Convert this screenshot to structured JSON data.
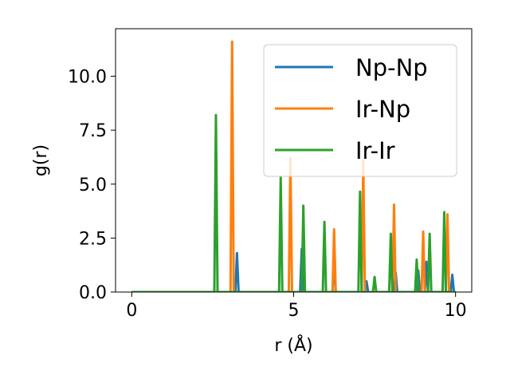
{
  "chart_data": {
    "type": "line",
    "title": "",
    "xlabel": "r (Å)",
    "ylabel": "g(r)",
    "xlim": [
      -0.5,
      10.5
    ],
    "ylim": [
      0.0,
      12.2
    ],
    "xticks": [
      0,
      5,
      10
    ],
    "xtick_labels": [
      "0",
      "5",
      "10"
    ],
    "yticks": [
      0.0,
      2.5,
      5.0,
      7.5,
      10.0
    ],
    "ytick_labels": [
      "0.0",
      "2.5",
      "5.0",
      "7.5",
      "10.0"
    ],
    "grid": false,
    "legend_position": "top-right",
    "r_step": 0.05,
    "r_max": 10.0,
    "series": [
      {
        "name": "Np-Np",
        "color": "#1f77b4",
        "peaks": [
          [
            3.25,
            1.8
          ],
          [
            5.25,
            2.0
          ],
          [
            6.25,
            1.5
          ],
          [
            7.25,
            0.5
          ],
          [
            8.15,
            0.9
          ],
          [
            8.85,
            1.0
          ],
          [
            9.1,
            1.4
          ],
          [
            9.9,
            0.8
          ]
        ]
      },
      {
        "name": "Ir-Np",
        "color": "#ff7f0e",
        "peaks": [
          [
            3.1,
            11.6
          ],
          [
            4.9,
            6.2
          ],
          [
            6.25,
            2.9
          ],
          [
            7.15,
            6.1
          ],
          [
            8.1,
            4.05
          ],
          [
            9.0,
            2.8
          ],
          [
            9.75,
            3.6
          ]
        ]
      },
      {
        "name": "Ir-Ir",
        "color": "#2ca02c",
        "peaks": [
          [
            2.6,
            8.2
          ],
          [
            4.6,
            5.3
          ],
          [
            5.3,
            4.0
          ],
          [
            5.95,
            3.25
          ],
          [
            7.05,
            4.65
          ],
          [
            7.5,
            0.7
          ],
          [
            8.0,
            2.7
          ],
          [
            8.8,
            1.5
          ],
          [
            9.2,
            2.7
          ],
          [
            9.65,
            3.7
          ]
        ]
      }
    ]
  }
}
